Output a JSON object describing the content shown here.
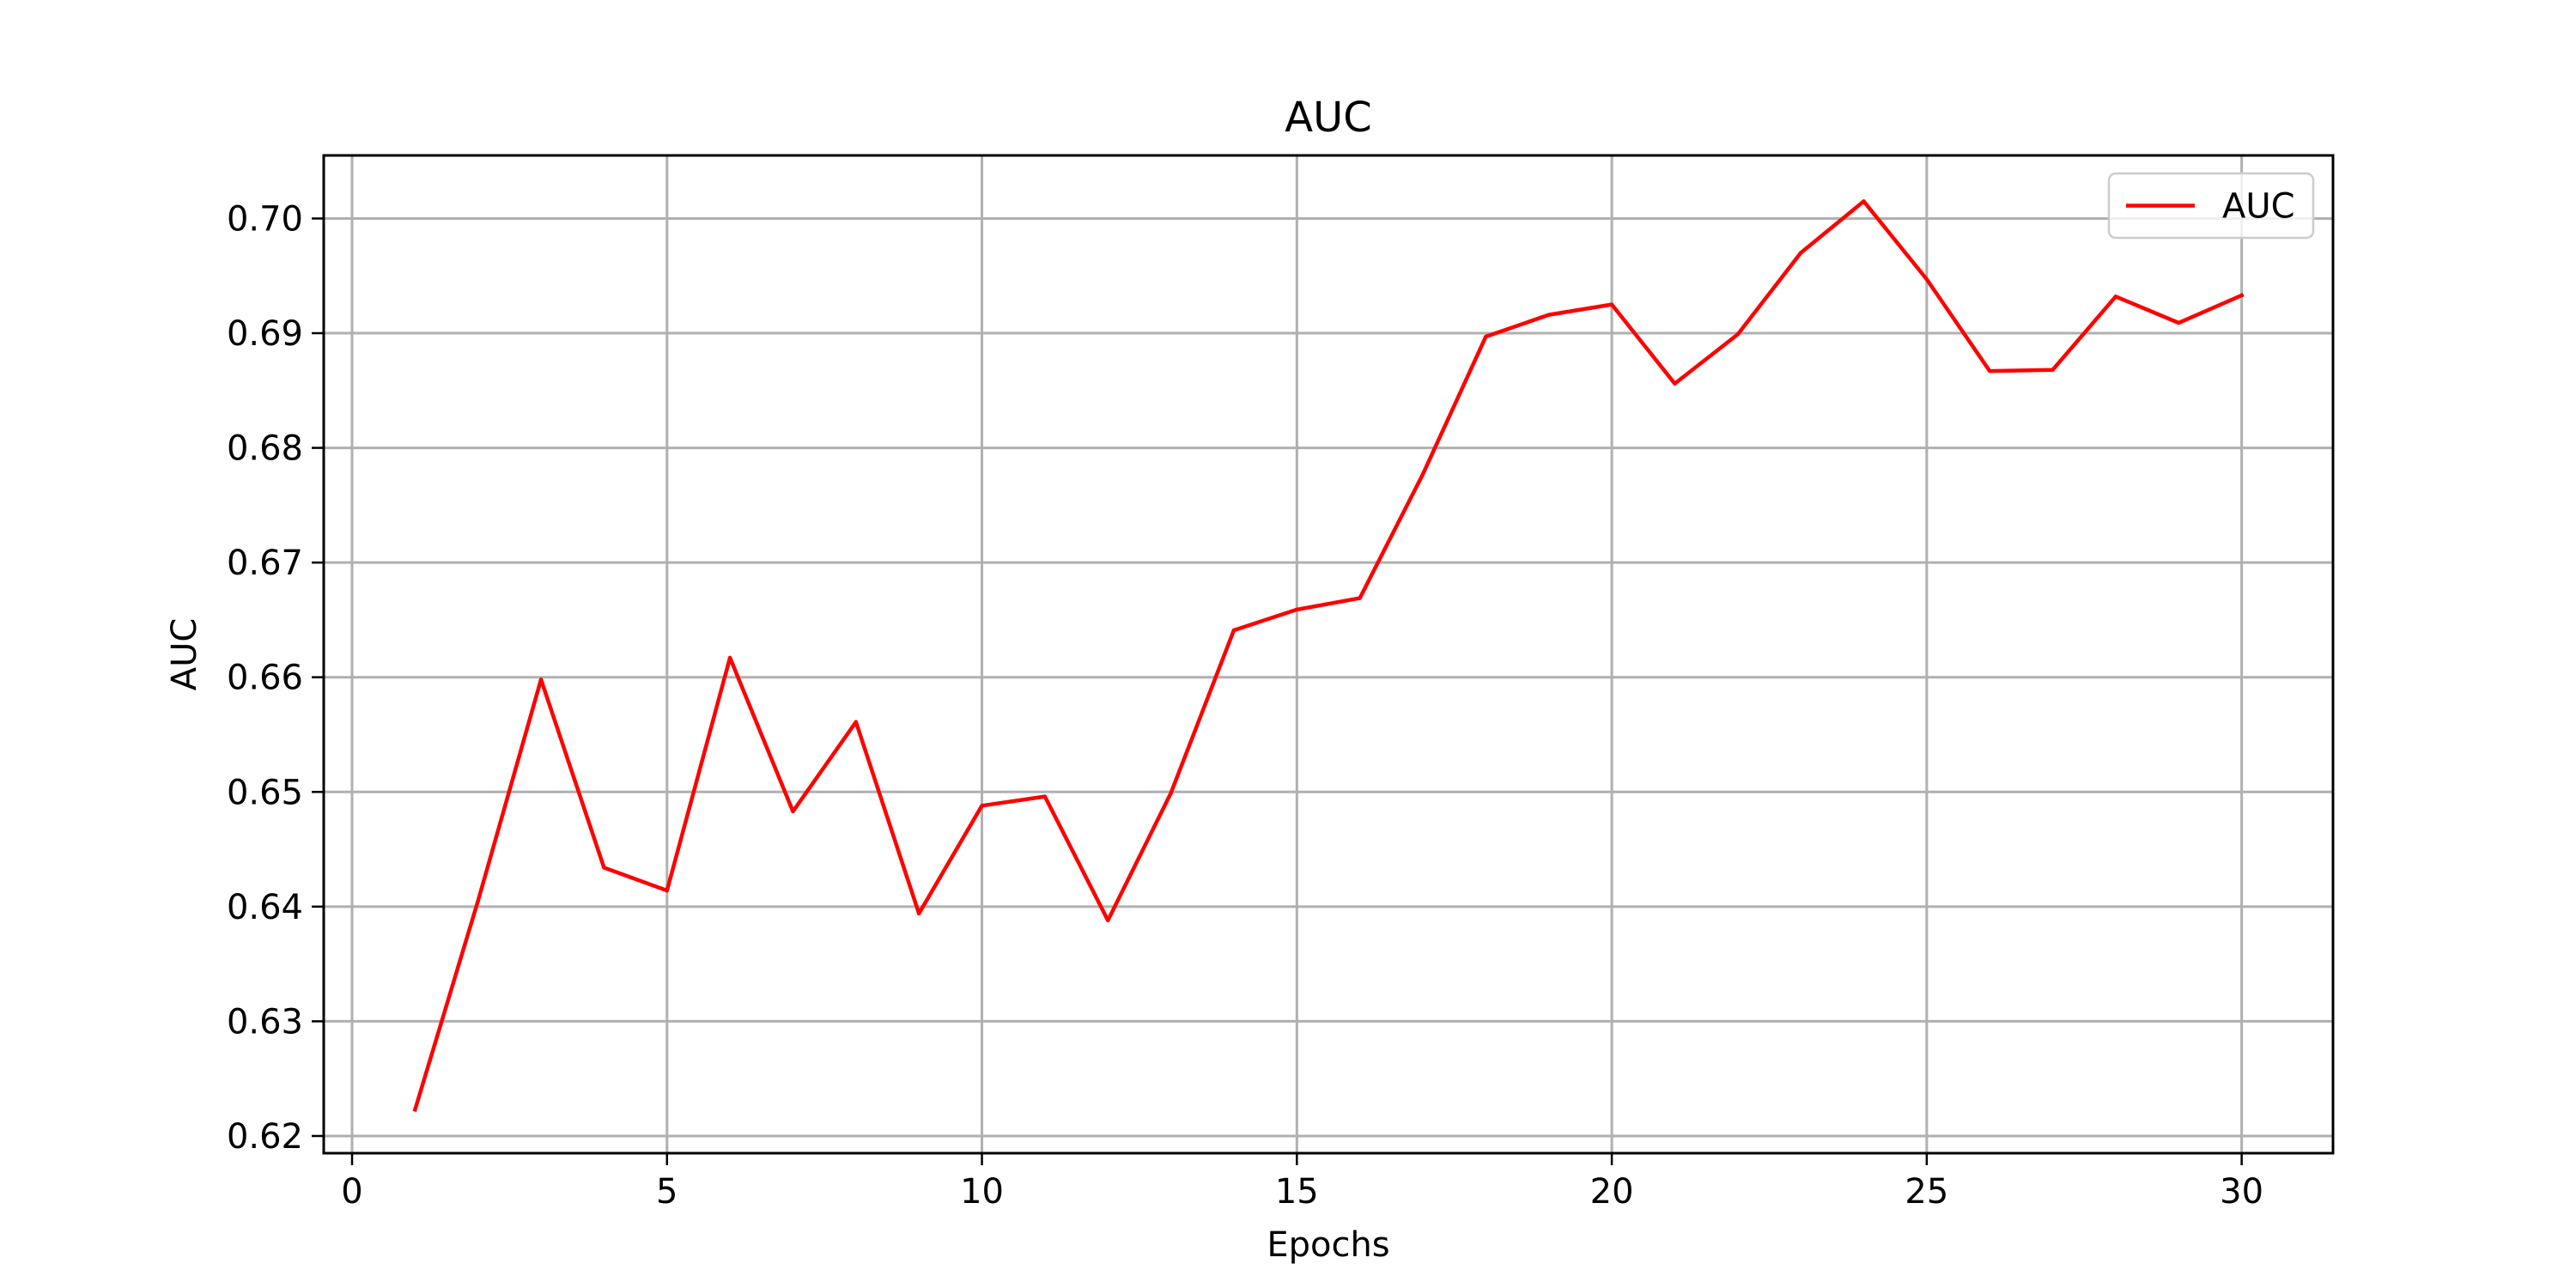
{
  "chart_data": {
    "type": "line",
    "title": "AUC",
    "xlabel": "Epochs",
    "ylabel": "AUC",
    "xlim": [
      -0.45,
      31.45
    ],
    "ylim": [
      0.6185,
      0.7055
    ],
    "x_ticks": [
      0,
      5,
      10,
      15,
      20,
      25,
      30
    ],
    "x_tick_labels": [
      "0",
      "5",
      "10",
      "15",
      "20",
      "25",
      "30"
    ],
    "y_ticks": [
      0.62,
      0.63,
      0.64,
      0.65,
      0.66,
      0.67,
      0.68,
      0.69,
      0.7
    ],
    "y_tick_labels": [
      "0.62",
      "0.63",
      "0.64",
      "0.65",
      "0.66",
      "0.67",
      "0.68",
      "0.69",
      "0.70"
    ],
    "grid": true,
    "legend": {
      "position": "top-right"
    },
    "colors": {
      "line": "#ff0000"
    },
    "series": [
      {
        "name": "AUC",
        "x": [
          1,
          2,
          3,
          4,
          5,
          6,
          7,
          8,
          9,
          10,
          11,
          12,
          13,
          14,
          15,
          16,
          17,
          18,
          19,
          20,
          21,
          22,
          23,
          24,
          25,
          26,
          27,
          28,
          29,
          30
        ],
        "y": [
          0.6223,
          0.6405,
          0.6598,
          0.6434,
          0.6414,
          0.6617,
          0.6483,
          0.6561,
          0.6394,
          0.6488,
          0.6496,
          0.6388,
          0.6499,
          0.6641,
          0.6659,
          0.6669,
          0.6777,
          0.6897,
          0.6916,
          0.6925,
          0.6856,
          0.6899,
          0.697,
          0.7015,
          0.6947,
          0.6867,
          0.6868,
          0.6932,
          0.6909,
          0.6933
        ]
      }
    ]
  }
}
